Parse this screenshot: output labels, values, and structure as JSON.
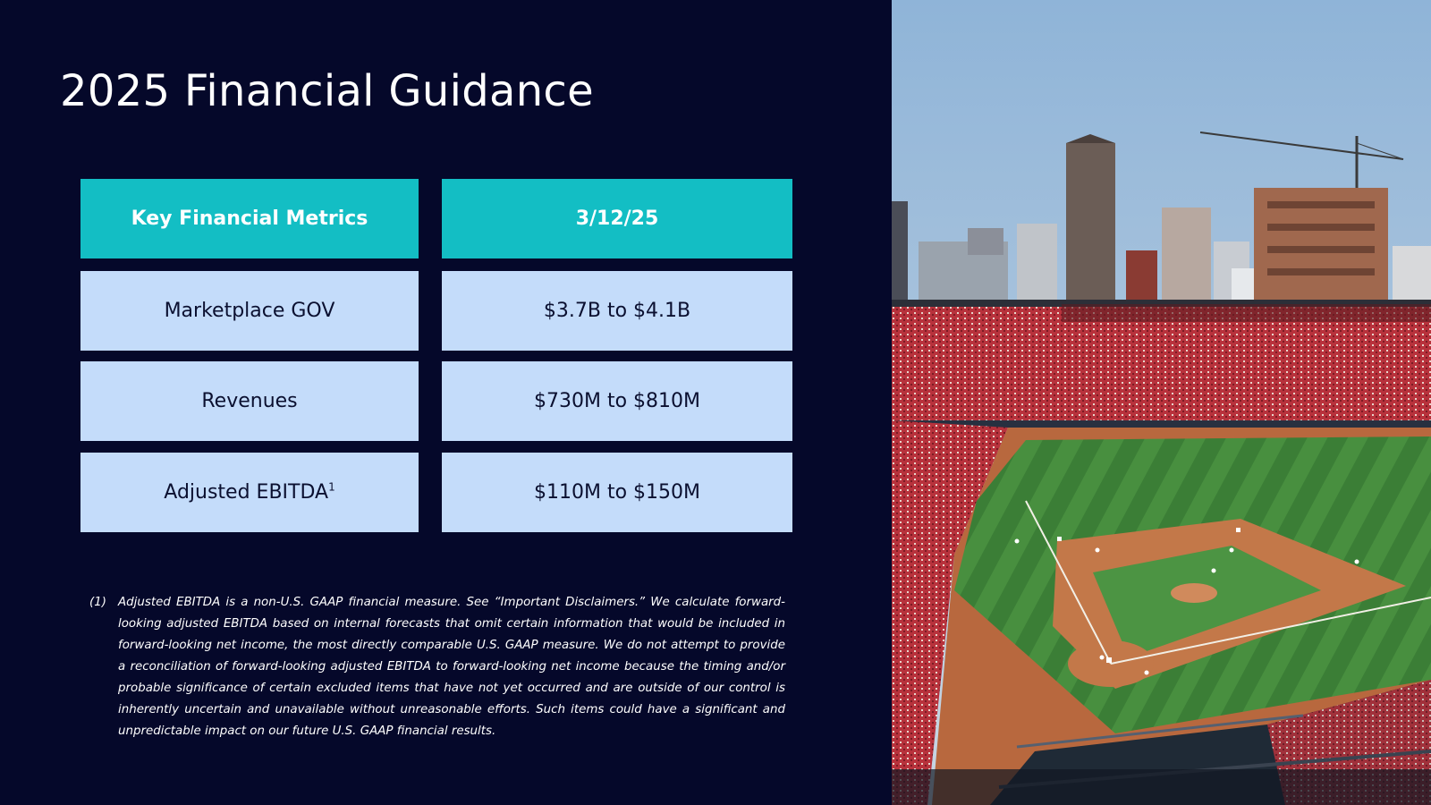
{
  "title": "2025 Financial Guidance",
  "table": {
    "headers": [
      "Key Financial Metrics",
      "3/12/25"
    ],
    "rows": [
      {
        "metric": "Marketplace GOV",
        "footnote": "",
        "value": "$3.7B to $4.1B"
      },
      {
        "metric": "Revenues",
        "footnote": "",
        "value": "$730M to $810M"
      },
      {
        "metric": "Adjusted EBITDA",
        "footnote": "1",
        "value": "$110M to $150M"
      }
    ]
  },
  "footnote": {
    "marker": "(1)",
    "text": "Adjusted EBITDA is a non-U.S. GAAP financial measure. See “Important Disclaimers.” We calculate forward-looking adjusted EBITDA based on internal forecasts that omit certain information that would be included in forward-looking net income, the most directly comparable U.S. GAAP measure. We do not attempt to provide a reconciliation of forward-looking adjusted EBITDA to forward-looking net income because the timing and/or probable significance of certain excluded items that have not yet occurred and are outside of our control is inherently uncertain and unavailable without unreasonable efforts. Such items could have a significant and unpredictable impact on our future U.S. GAAP financial results."
  },
  "colors": {
    "background": "#05082a",
    "header_fill": "#13bec4",
    "row_fill": "#c4dcfa"
  },
  "image": {
    "subject": "baseball-stadium-photo"
  }
}
